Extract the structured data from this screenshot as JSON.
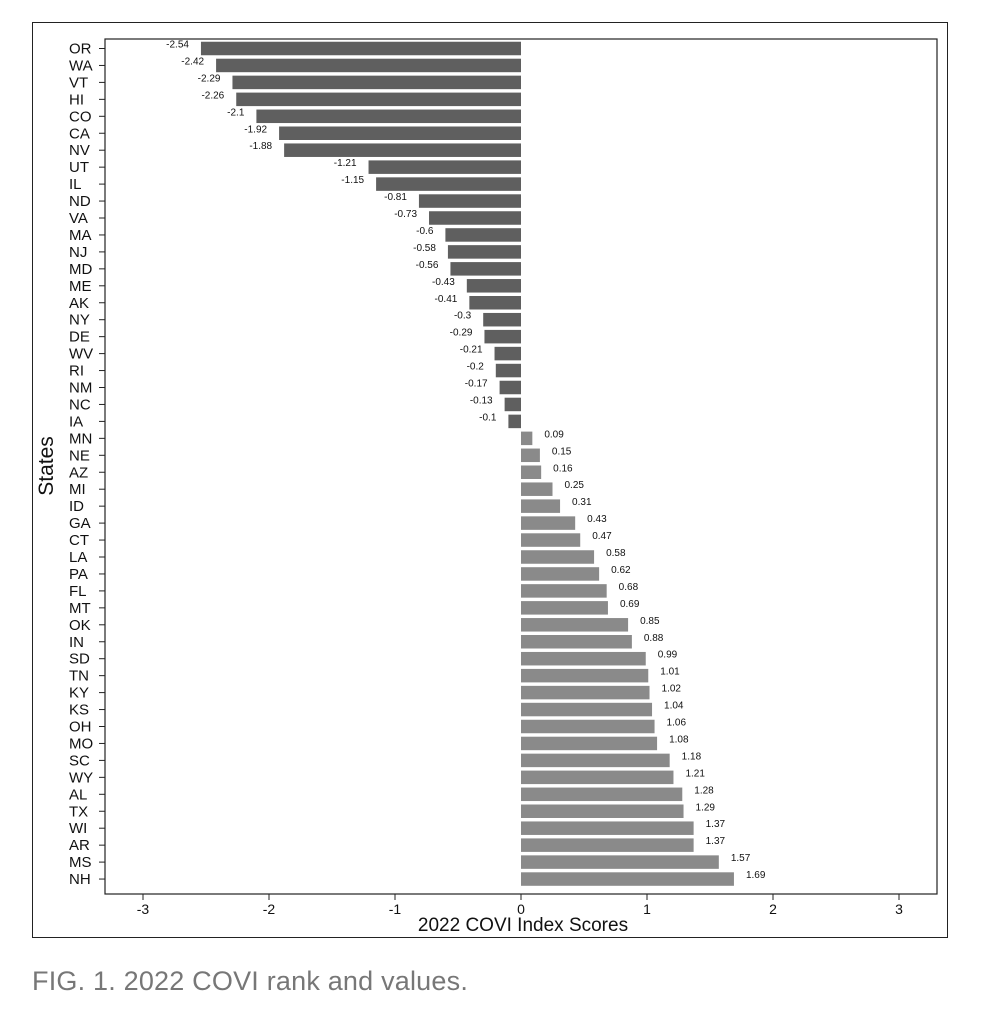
{
  "caption": "FIG. 1. 2022 COVI rank and values.",
  "chart_data": {
    "type": "bar",
    "orientation": "horizontal",
    "xlabel": "2022 COVI Index Scores",
    "ylabel": "States",
    "xlim": [
      -3,
      3
    ],
    "xticks": [
      -3,
      -2,
      -1,
      0,
      1,
      2,
      3
    ],
    "grid": false,
    "colors": {
      "negative": "#5f5f5f",
      "positive": "#8a8a8a",
      "axis": "#222222"
    },
    "categories": [
      "OR",
      "WA",
      "VT",
      "HI",
      "CO",
      "CA",
      "NV",
      "UT",
      "IL",
      "ND",
      "VA",
      "MA",
      "NJ",
      "MD",
      "ME",
      "AK",
      "NY",
      "DE",
      "WV",
      "RI",
      "NM",
      "NC",
      "IA",
      "MN",
      "NE",
      "AZ",
      "MI",
      "ID",
      "GA",
      "CT",
      "LA",
      "PA",
      "FL",
      "MT",
      "OK",
      "IN",
      "SD",
      "TN",
      "KY",
      "KS",
      "OH",
      "MO",
      "SC",
      "WY",
      "AL",
      "TX",
      "WI",
      "AR",
      "MS",
      "NH"
    ],
    "values": [
      -2.54,
      -2.42,
      -2.29,
      -2.26,
      -2.1,
      -1.92,
      -1.88,
      -1.21,
      -1.15,
      -0.81,
      -0.73,
      -0.6,
      -0.58,
      -0.56,
      -0.43,
      -0.41,
      -0.3,
      -0.29,
      -0.21,
      -0.2,
      -0.17,
      -0.13,
      -0.1,
      0.09,
      0.15,
      0.16,
      0.25,
      0.31,
      0.43,
      0.47,
      0.58,
      0.62,
      0.68,
      0.69,
      0.85,
      0.88,
      0.99,
      1.01,
      1.02,
      1.04,
      1.06,
      1.08,
      1.18,
      1.21,
      1.28,
      1.29,
      1.37,
      1.37,
      1.57,
      1.69
    ],
    "value_labels": [
      "-2.54",
      "-2.42",
      "-2.29",
      "-2.26",
      "-2.1",
      "-1.92",
      "-1.88",
      "-1.21",
      "-1.15",
      "-0.81",
      "-0.73",
      "-0.6",
      "-0.58",
      "-0.56",
      "-0.43",
      "-0.41",
      "-0.3",
      "-0.29",
      "-0.21",
      "-0.2",
      "-0.17",
      "-0.13",
      "-0.1",
      "0.09",
      "0.15",
      "0.16",
      "0.25",
      "0.31",
      "0.43",
      "0.47",
      "0.58",
      "0.62",
      "0.68",
      "0.69",
      "0.85",
      "0.88",
      "0.99",
      "1.01",
      "1.02",
      "1.04",
      "1.06",
      "1.08",
      "1.18",
      "1.21",
      "1.28",
      "1.29",
      "1.37",
      "1.37",
      "1.57",
      "1.69"
    ]
  }
}
